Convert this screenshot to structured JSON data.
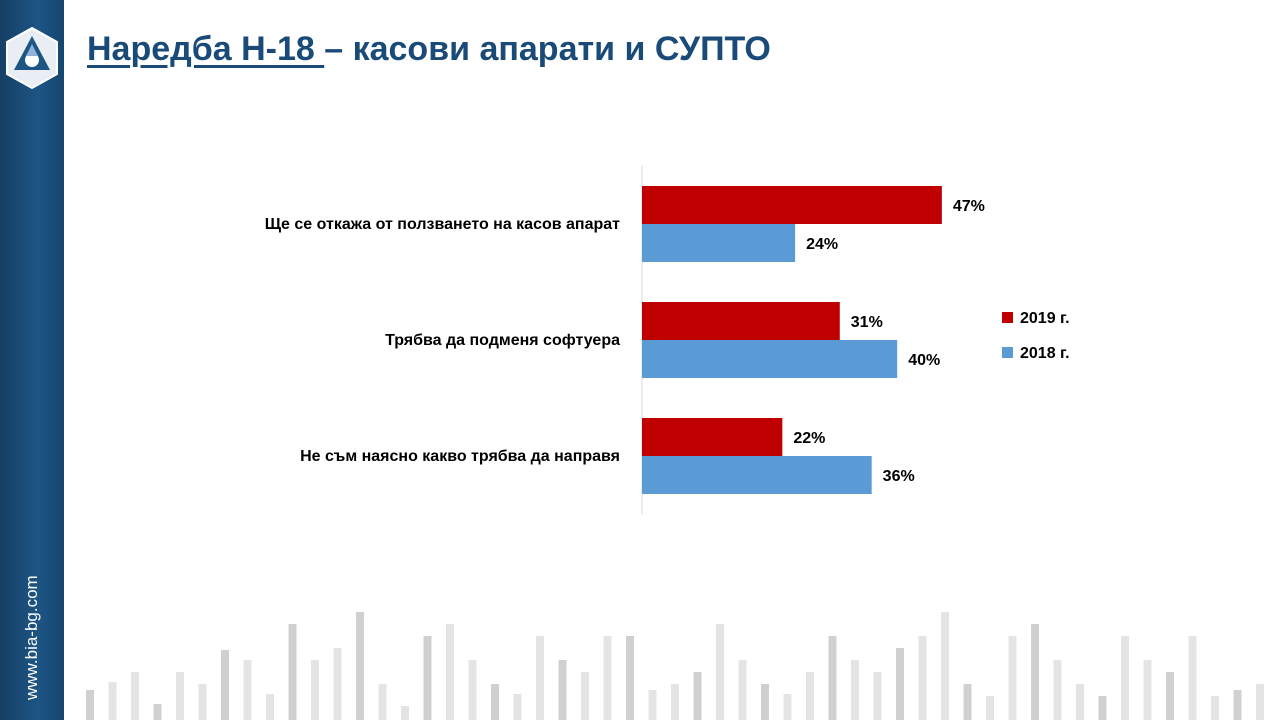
{
  "slide": {
    "title_underlined": "Наредба Н-18 ",
    "title_rest": "– касови апарати и СУПТО",
    "website": "www.bia-bg.com"
  },
  "colors": {
    "series_2019": "#c00000",
    "series_2018": "#5b9bd5",
    "title": "#1a4a78",
    "sidebar": "#1d5584"
  },
  "chart_data": {
    "type": "bar",
    "orientation": "horizontal",
    "categories": [
      "Ще се откажа от ползването на касов апарат",
      "Трябва  да подменя софтуера",
      "Не съм наясно какво трябва да направя"
    ],
    "series": [
      {
        "name": "2019 г.",
        "values": [
          47,
          31,
          22
        ],
        "labels": [
          "47%",
          "31%",
          "22%"
        ]
      },
      {
        "name": "2018 г.",
        "values": [
          24,
          40,
          36
        ],
        "labels": [
          "24%",
          "40%",
          "36%"
        ]
      }
    ],
    "unit": "%",
    "xlim": [
      0,
      100
    ],
    "legend": "right",
    "grid": false
  }
}
